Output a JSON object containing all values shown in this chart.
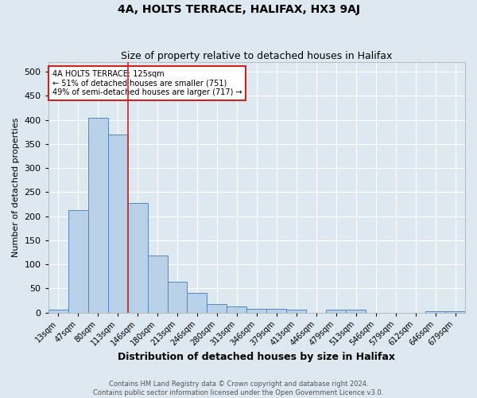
{
  "title": "4A, HOLTS TERRACE, HALIFAX, HX3 9AJ",
  "subtitle": "Size of property relative to detached houses in Halifax",
  "xlabel": "Distribution of detached houses by size in Halifax",
  "ylabel": "Number of detached properties",
  "bar_labels": [
    "13sqm",
    "47sqm",
    "80sqm",
    "113sqm",
    "146sqm",
    "180sqm",
    "213sqm",
    "246sqm",
    "280sqm",
    "313sqm",
    "346sqm",
    "379sqm",
    "413sqm",
    "446sqm",
    "479sqm",
    "513sqm",
    "546sqm",
    "579sqm",
    "612sqm",
    "646sqm",
    "679sqm"
  ],
  "bar_values": [
    5,
    212,
    405,
    370,
    228,
    118,
    63,
    40,
    18,
    13,
    7,
    7,
    5,
    0,
    5,
    6,
    0,
    0,
    0,
    2,
    3
  ],
  "bar_color": "#b8d0e8",
  "bar_edge_color": "#5588bb",
  "background_color": "#dde8f0",
  "grid_color": "#ffffff",
  "vline_color": "#cc2222",
  "vline_pos": 3.5,
  "annotation_text": "4A HOLTS TERRACE: 125sqm\n← 51% of detached houses are smaller (751)\n49% of semi-detached houses are larger (717) →",
  "annotation_box_facecolor": "#ffffff",
  "annotation_box_edgecolor": "#cc2222",
  "footer_text": "Contains HM Land Registry data © Crown copyright and database right 2024.\nContains public sector information licensed under the Open Government Licence v3.0.",
  "ylim": [
    0,
    520
  ],
  "yticks": [
    0,
    50,
    100,
    150,
    200,
    250,
    300,
    350,
    400,
    450,
    500
  ],
  "title_fontsize": 10,
  "subtitle_fontsize": 9,
  "ylabel_fontsize": 8,
  "xlabel_fontsize": 9,
  "tick_fontsize": 7,
  "annot_fontsize": 7,
  "footer_fontsize": 6
}
